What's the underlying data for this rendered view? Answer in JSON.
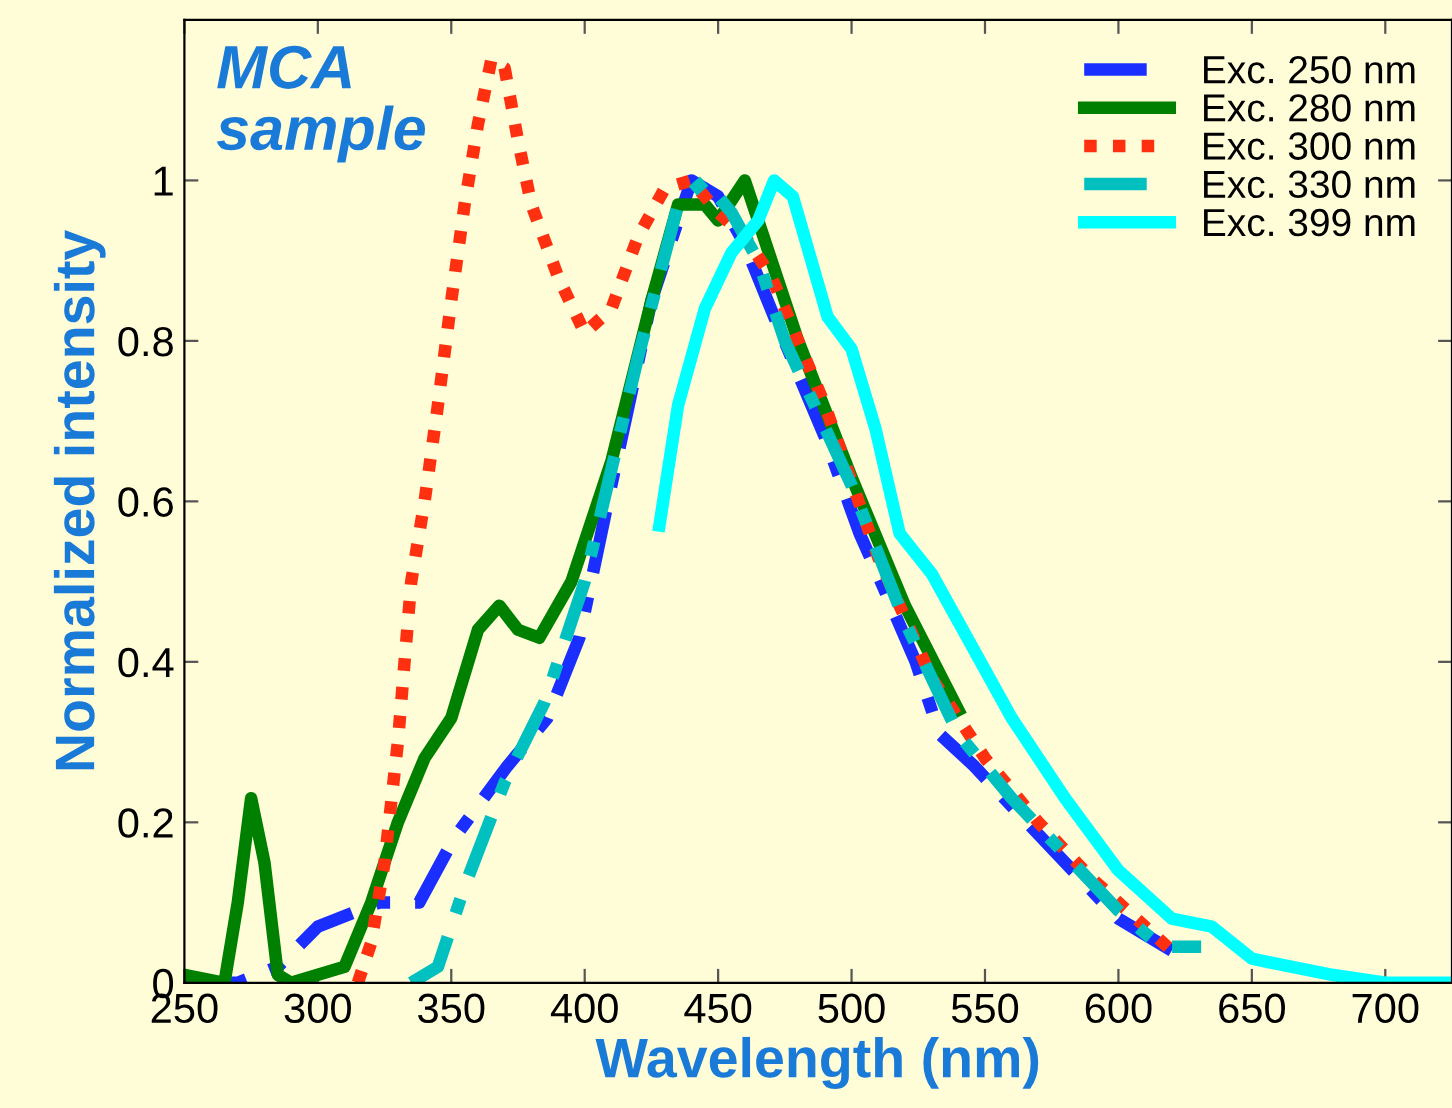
{
  "chart_data": {
    "type": "line",
    "xlabel": "Wavelength (nm)",
    "ylabel": "Normalized intensity",
    "annotations": [
      "MCA\nsample"
    ],
    "xlim": [
      250,
      725
    ],
    "ylim": [
      0,
      1.2
    ],
    "xticks": [
      250,
      300,
      350,
      400,
      450,
      500,
      550,
      600,
      650,
      700
    ],
    "yticks": [
      0,
      0.2,
      0.4,
      0.6,
      0.8,
      1
    ],
    "grid": false,
    "legend": "top right",
    "marker": "none",
    "series": [
      {
        "name": "Exc. 250 nm",
        "color": "#1a2eff",
        "line_style": "dashdot",
        "x": [
          250,
          270,
          285,
          300,
          323,
          338,
          351,
          371,
          386,
          398,
          410,
          425,
          440,
          450,
          460,
          471,
          490,
          503,
          511,
          524,
          533,
          546,
          560,
          580,
          600,
          620
        ],
        "values": [
          0.0,
          0.0,
          0.02,
          0.07,
          0.1,
          0.1,
          0.18,
          0.27,
          0.33,
          0.43,
          0.62,
          0.85,
          1.0,
          0.98,
          0.92,
          0.83,
          0.68,
          0.56,
          0.5,
          0.4,
          0.31,
          0.27,
          0.22,
          0.15,
          0.08,
          0.04
        ]
      },
      {
        "name": "Exc. 280 nm",
        "color": "#008000",
        "line_style": "solid",
        "x": [
          250,
          265,
          270,
          275,
          280,
          285,
          290,
          300,
          310,
          320,
          330,
          340,
          350,
          360,
          368,
          375,
          383,
          395,
          410,
          425,
          435,
          445,
          450,
          460,
          465,
          480,
          500,
          520,
          540
        ],
        "values": [
          0.01,
          0.0,
          0.1,
          0.23,
          0.15,
          0.01,
          0.0,
          0.01,
          0.02,
          0.1,
          0.2,
          0.28,
          0.33,
          0.44,
          0.47,
          0.44,
          0.43,
          0.5,
          0.65,
          0.85,
          0.97,
          0.97,
          0.95,
          1.0,
          0.95,
          0.8,
          0.63,
          0.47,
          0.34
        ]
      },
      {
        "name": "Exc. 300 nm",
        "color": "#ff3010",
        "line_style": "dotted",
        "x": [
          315,
          320,
          325,
          330,
          335,
          340,
          345,
          350,
          355,
          360,
          365,
          370,
          375,
          380,
          390,
          400,
          410,
          420,
          430,
          440,
          450,
          460,
          470,
          490,
          510,
          530,
          550,
          570,
          590,
          610,
          620
        ],
        "values": [
          0.0,
          0.05,
          0.15,
          0.3,
          0.5,
          0.6,
          0.72,
          0.85,
          0.97,
          1.07,
          1.15,
          1.14,
          1.05,
          0.97,
          0.88,
          0.81,
          0.84,
          0.93,
          0.99,
          1.0,
          0.96,
          0.93,
          0.88,
          0.72,
          0.53,
          0.38,
          0.28,
          0.2,
          0.13,
          0.07,
          0.04
        ]
      },
      {
        "name": "Exc. 330 nm",
        "color": "#00c0c0",
        "line_style": "dashdot",
        "x": [
          335,
          345,
          355,
          370,
          385,
          400,
          420,
          435,
          445,
          455,
          465,
          475,
          500,
          520,
          540,
          560,
          580,
          600,
          616,
          631
        ],
        "values": [
          0.0,
          0.02,
          0.12,
          0.25,
          0.35,
          0.5,
          0.78,
          0.97,
          1.0,
          0.96,
          0.9,
          0.8,
          0.62,
          0.45,
          0.31,
          0.23,
          0.16,
          0.09,
          0.045,
          0.045
        ]
      },
      {
        "name": "Exc. 399 nm",
        "color": "#00ffff",
        "line_style": "solid",
        "x": [
          428,
          435,
          445,
          455,
          465,
          471,
          478,
          491,
          500,
          509,
          518,
          530,
          545,
          560,
          580,
          600,
          620,
          635,
          650,
          680,
          700,
          725
        ],
        "values": [
          0.57,
          0.72,
          0.84,
          0.91,
          0.95,
          1.0,
          0.98,
          0.83,
          0.79,
          0.69,
          0.56,
          0.51,
          0.42,
          0.33,
          0.23,
          0.14,
          0.08,
          0.07,
          0.03,
          0.01,
          0.0,
          0.0
        ]
      }
    ]
  }
}
